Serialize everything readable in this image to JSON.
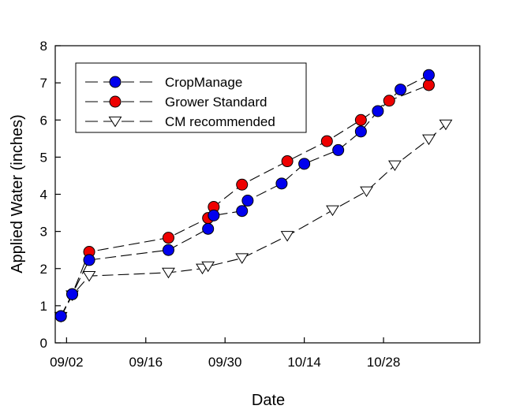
{
  "chart_data": {
    "type": "line",
    "title": "",
    "xlabel": "Date",
    "ylabel": "Applied Water (inches)",
    "ylim": [
      0,
      8
    ],
    "xlim": [
      -2,
      73
    ],
    "x_unit": "days since 09/02",
    "x_ticks": [
      {
        "day": 0,
        "label": "09/02"
      },
      {
        "day": 14,
        "label": "09/16"
      },
      {
        "day": 28,
        "label": "09/30"
      },
      {
        "day": 42,
        "label": "10/14"
      },
      {
        "day": 56,
        "label": "10/28"
      }
    ],
    "y_ticks": [
      0,
      1,
      2,
      3,
      4,
      5,
      6,
      7,
      8
    ],
    "legend_position": "top-left",
    "grid": false,
    "series": [
      {
        "name": "CropManage",
        "color": "#0000ee",
        "marker": "circle",
        "x": [
          -1,
          1,
          4,
          18,
          25,
          26,
          31,
          32,
          38,
          42,
          48,
          52,
          55,
          59,
          64
        ],
        "y": [
          0.72,
          1.31,
          2.23,
          2.5,
          3.07,
          3.43,
          3.55,
          3.83,
          4.29,
          4.82,
          5.19,
          5.69,
          6.24,
          6.82,
          7.21
        ]
      },
      {
        "name": "Grower Standard",
        "color": "#ee0000",
        "marker": "circle",
        "x": [
          -1,
          1,
          4,
          18,
          25,
          26,
          31,
          39,
          46,
          52,
          57,
          64
        ],
        "y": [
          0.72,
          1.31,
          2.45,
          2.83,
          3.36,
          3.66,
          4.26,
          4.89,
          5.43,
          6.0,
          6.52,
          6.94
        ]
      },
      {
        "name": "CM recommended",
        "color": "#ffffff",
        "marker": "triangle-down",
        "x": [
          -1,
          1,
          4,
          18,
          24,
          25,
          31,
          39,
          47,
          53,
          58,
          64,
          67
        ],
        "y": [
          0.7,
          1.28,
          1.8,
          1.89,
          2.0,
          2.06,
          2.28,
          2.88,
          3.57,
          4.08,
          4.78,
          5.48,
          5.88
        ]
      }
    ]
  }
}
